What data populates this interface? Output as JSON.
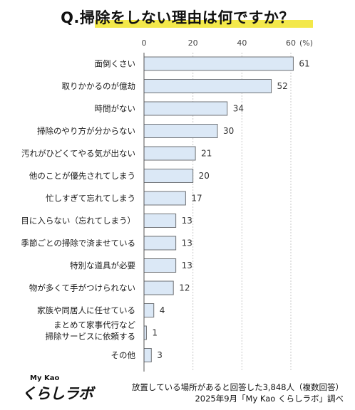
{
  "title": "Q.掃除をしない理由は何ですか？",
  "chart_data": {
    "type": "bar",
    "orientation": "horizontal",
    "unit": "(%)",
    "xlim": [
      0,
      60
    ],
    "xticks": [
      "0",
      "20",
      "40",
      "60"
    ],
    "categories": [
      "面倒くさい",
      "取りかかるのが億劫",
      "時間がない",
      "掃除のやり方が分からない",
      "汚れがひどくてやる気が出ない",
      "他のことが優先されてしまう",
      "忙しすぎて忘れてしまう",
      "目に入らない（忘れてしまう）",
      "季節ごとの掃除で済ませている",
      "特別な道具が必要",
      "物が多くて手がつけられない",
      "家族や同居人に任せている",
      "まとめて家事代行など\n掃除サービスに依頼する",
      "その他"
    ],
    "values": [
      61,
      52,
      34,
      30,
      21,
      20,
      17,
      13,
      13,
      13,
      12,
      4,
      1,
      3
    ],
    "grid": true
  },
  "logo": {
    "top": "My Kao",
    "main": "くらしラボ"
  },
  "footnote": {
    "line1": "放置している場所があると回答した3,848人（複数回答）",
    "line2": "2025年9月「My Kao くらしラボ」調べ"
  }
}
